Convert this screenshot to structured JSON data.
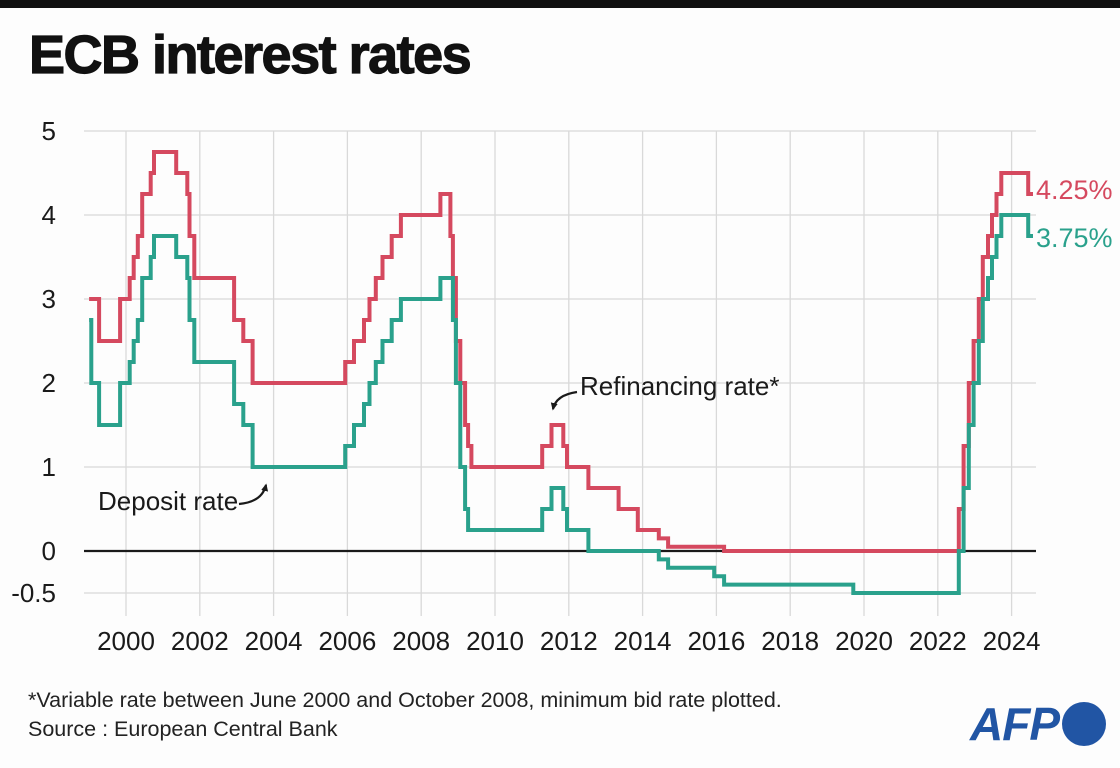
{
  "header": {
    "title": "ECB interest rates"
  },
  "chart_data": {
    "type": "line",
    "line_style": "step-after",
    "title": "ECB interest rates",
    "value_unit": "%",
    "grid": true,
    "x_range": [
      1999.0,
      2024.58
    ],
    "ylim": [
      -0.5,
      5
    ],
    "x_ticks": [
      2000,
      2002,
      2004,
      2006,
      2008,
      2010,
      2012,
      2014,
      2016,
      2018,
      2020,
      2022,
      2024
    ],
    "y_ticks": [
      {
        "v": 5,
        "label": "5"
      },
      {
        "v": 4,
        "label": "4"
      },
      {
        "v": 3,
        "label": "3"
      },
      {
        "v": 2,
        "label": "2"
      },
      {
        "v": 1,
        "label": "1"
      },
      {
        "v": 0,
        "label": "0"
      },
      {
        "v": -0.5,
        "label": "-0.5"
      }
    ],
    "series": [
      {
        "id": "refinancing",
        "name": "Refinancing rate",
        "color": "#d5495f",
        "end_label": "4.25%",
        "points": [
          [
            1999.0,
            3.0
          ],
          [
            1999.27,
            2.5
          ],
          [
            1999.84,
            3.0
          ],
          [
            2000.1,
            3.25
          ],
          [
            2000.21,
            3.5
          ],
          [
            2000.32,
            3.75
          ],
          [
            2000.44,
            4.25
          ],
          [
            2000.67,
            4.5
          ],
          [
            2000.76,
            4.75
          ],
          [
            2001.36,
            4.5
          ],
          [
            2001.66,
            4.25
          ],
          [
            2001.72,
            3.75
          ],
          [
            2001.85,
            3.25
          ],
          [
            2002.93,
            2.75
          ],
          [
            2003.18,
            2.5
          ],
          [
            2003.43,
            2.0
          ],
          [
            2005.94,
            2.25
          ],
          [
            2006.18,
            2.5
          ],
          [
            2006.45,
            2.75
          ],
          [
            2006.6,
            3.0
          ],
          [
            2006.77,
            3.25
          ],
          [
            2006.95,
            3.5
          ],
          [
            2007.2,
            3.75
          ],
          [
            2007.45,
            4.0
          ],
          [
            2008.52,
            4.25
          ],
          [
            2008.79,
            3.75
          ],
          [
            2008.86,
            3.25
          ],
          [
            2008.94,
            2.5
          ],
          [
            2009.06,
            2.0
          ],
          [
            2009.19,
            1.5
          ],
          [
            2009.27,
            1.25
          ],
          [
            2009.36,
            1.0
          ],
          [
            2011.28,
            1.25
          ],
          [
            2011.53,
            1.5
          ],
          [
            2011.85,
            1.25
          ],
          [
            2011.95,
            1.0
          ],
          [
            2012.53,
            0.75
          ],
          [
            2013.35,
            0.5
          ],
          [
            2013.87,
            0.25
          ],
          [
            2014.44,
            0.15
          ],
          [
            2014.69,
            0.05
          ],
          [
            2016.21,
            0.0
          ],
          [
            2022.57,
            0.5
          ],
          [
            2022.7,
            1.25
          ],
          [
            2022.84,
            2.0
          ],
          [
            2022.97,
            2.5
          ],
          [
            2023.11,
            3.0
          ],
          [
            2023.22,
            3.5
          ],
          [
            2023.36,
            3.75
          ],
          [
            2023.47,
            4.0
          ],
          [
            2023.59,
            4.25
          ],
          [
            2023.72,
            4.5
          ],
          [
            2024.45,
            4.25
          ]
        ]
      },
      {
        "id": "deposit",
        "name": "Deposit rate",
        "color": "#2aa18c",
        "end_label": "3.75%",
        "points": [
          [
            1999.0,
            2.75
          ],
          [
            1999.06,
            2.0
          ],
          [
            1999.27,
            1.5
          ],
          [
            1999.84,
            2.0
          ],
          [
            2000.1,
            2.25
          ],
          [
            2000.21,
            2.5
          ],
          [
            2000.32,
            2.75
          ],
          [
            2000.44,
            3.25
          ],
          [
            2000.67,
            3.5
          ],
          [
            2000.76,
            3.75
          ],
          [
            2001.36,
            3.5
          ],
          [
            2001.66,
            3.25
          ],
          [
            2001.72,
            2.75
          ],
          [
            2001.85,
            2.25
          ],
          [
            2002.93,
            1.75
          ],
          [
            2003.18,
            1.5
          ],
          [
            2003.43,
            1.0
          ],
          [
            2005.94,
            1.25
          ],
          [
            2006.18,
            1.5
          ],
          [
            2006.45,
            1.75
          ],
          [
            2006.6,
            2.0
          ],
          [
            2006.77,
            2.25
          ],
          [
            2006.95,
            2.5
          ],
          [
            2007.2,
            2.75
          ],
          [
            2007.45,
            3.0
          ],
          [
            2008.52,
            3.25
          ],
          [
            2008.86,
            2.75
          ],
          [
            2008.94,
            2.0
          ],
          [
            2009.06,
            1.0
          ],
          [
            2009.19,
            0.5
          ],
          [
            2009.27,
            0.25
          ],
          [
            2011.28,
            0.5
          ],
          [
            2011.53,
            0.75
          ],
          [
            2011.85,
            0.5
          ],
          [
            2011.95,
            0.25
          ],
          [
            2012.53,
            0.0
          ],
          [
            2014.44,
            -0.1
          ],
          [
            2014.69,
            -0.2
          ],
          [
            2015.94,
            -0.3
          ],
          [
            2016.21,
            -0.4
          ],
          [
            2019.71,
            -0.5
          ],
          [
            2022.57,
            0.0
          ],
          [
            2022.7,
            0.75
          ],
          [
            2022.84,
            1.5
          ],
          [
            2022.97,
            2.0
          ],
          [
            2023.11,
            2.5
          ],
          [
            2023.22,
            3.0
          ],
          [
            2023.36,
            3.25
          ],
          [
            2023.47,
            3.5
          ],
          [
            2023.59,
            3.75
          ],
          [
            2023.72,
            4.0
          ],
          [
            2024.45,
            3.75
          ]
        ]
      }
    ],
    "annotations": [
      {
        "text": "Refinancing rate*",
        "target_series": "refinancing"
      },
      {
        "text": "Deposit rate",
        "target_series": "deposit"
      }
    ]
  },
  "footer": {
    "footnote": "*Variable rate between June 2000 and October 2008, minimum bid rate plotted.",
    "source": "Source : European Central Bank",
    "logo_text": "AFP"
  },
  "colors": {
    "refinancing": "#d5495f",
    "deposit": "#2aa18c",
    "grid": "#d9d9d9",
    "zero_line": "#1a1a1a",
    "afp_blue": "#2155a4",
    "top_bar": "#111111"
  }
}
